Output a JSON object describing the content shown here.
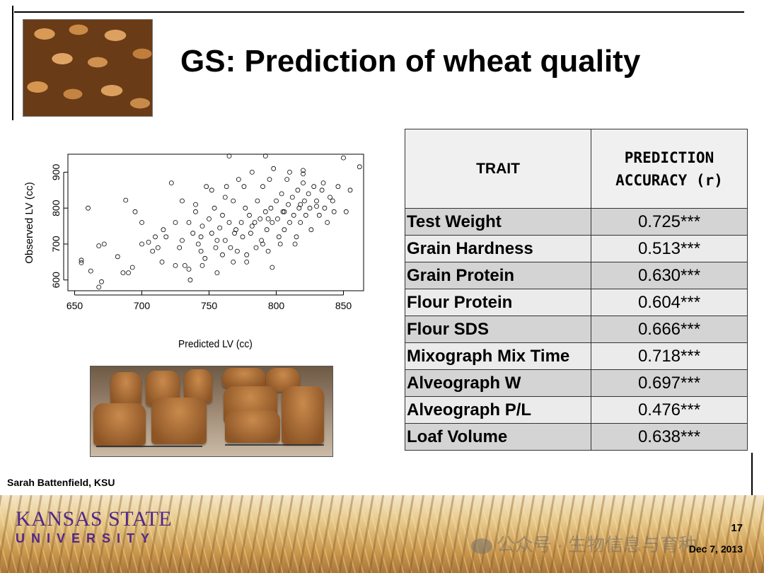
{
  "slide": {
    "title": "GS: Prediction of wheat quality",
    "credit": "Sarah Battenfield, KSU",
    "logo": {
      "line1": "KANSAS STATE",
      "line2": "UNIVERSITY"
    },
    "watermark": "公众号 · 生物信息与育种",
    "page_number": "17",
    "date": "Dec 7, 2013"
  },
  "table": {
    "headers": [
      "TRAIT",
      "PREDICTION ACCURACY (r)"
    ],
    "rows": [
      {
        "trait": "Test Weight",
        "value": "0.725***"
      },
      {
        "trait": "Grain Hardness",
        "value": "0.513***"
      },
      {
        "trait": "Grain Protein",
        "value": "0.630***"
      },
      {
        "trait": "Flour Protein",
        "value": "0.604***"
      },
      {
        "trait": "Flour SDS",
        "value": "0.666***"
      },
      {
        "trait": "Mixograph Mix Time",
        "value": "0.718***"
      },
      {
        "trait": "Alveograph W",
        "value": "0.697***"
      },
      {
        "trait": "Alveograph P/L",
        "value": "0.476***"
      },
      {
        "trait": "Loaf Volume",
        "value": "0.638***"
      }
    ]
  },
  "chart_data": {
    "type": "scatter",
    "xlabel": "Predicted LV (cc)",
    "ylabel": "Observed LV (cc)",
    "xlim": [
      645,
      865
    ],
    "ylim": [
      570,
      950
    ],
    "xticks": [
      650,
      700,
      750,
      800,
      850
    ],
    "yticks": [
      600,
      700,
      800,
      900
    ],
    "points": [
      [
        660,
        800
      ],
      [
        655,
        655
      ],
      [
        655,
        648
      ],
      [
        662,
        625
      ],
      [
        668,
        695
      ],
      [
        672,
        700
      ],
      [
        668,
        580
      ],
      [
        670,
        595
      ],
      [
        682,
        665
      ],
      [
        686,
        620
      ],
      [
        690,
        620
      ],
      [
        693,
        635
      ],
      [
        688,
        822
      ],
      [
        695,
        790
      ],
      [
        700,
        760
      ],
      [
        705,
        705
      ],
      [
        708,
        680
      ],
      [
        712,
        690
      ],
      [
        715,
        650
      ],
      [
        718,
        720
      ],
      [
        722,
        870
      ],
      [
        725,
        760
      ],
      [
        728,
        690
      ],
      [
        730,
        820
      ],
      [
        732,
        640
      ],
      [
        735,
        760
      ],
      [
        736,
        600
      ],
      [
        738,
        730
      ],
      [
        740,
        790
      ],
      [
        742,
        700
      ],
      [
        744,
        680
      ],
      [
        745,
        750
      ],
      [
        747,
        660
      ],
      [
        748,
        860
      ],
      [
        750,
        770
      ],
      [
        752,
        730
      ],
      [
        754,
        800
      ],
      [
        755,
        690
      ],
      [
        756,
        620
      ],
      [
        758,
        745
      ],
      [
        760,
        780
      ],
      [
        762,
        710
      ],
      [
        763,
        860
      ],
      [
        765,
        760
      ],
      [
        766,
        690
      ],
      [
        768,
        820
      ],
      [
        770,
        740
      ],
      [
        771,
        680
      ],
      [
        772,
        880
      ],
      [
        774,
        760
      ],
      [
        775,
        720
      ],
      [
        777,
        800
      ],
      [
        778,
        650
      ],
      [
        780,
        780
      ],
      [
        781,
        730
      ],
      [
        782,
        900
      ],
      [
        784,
        760
      ],
      [
        785,
        690
      ],
      [
        786,
        820
      ],
      [
        788,
        770
      ],
      [
        789,
        710
      ],
      [
        790,
        860
      ],
      [
        792,
        790
      ],
      [
        793,
        740
      ],
      [
        794,
        680
      ],
      [
        796,
        800
      ],
      [
        797,
        760
      ],
      [
        798,
        910
      ],
      [
        800,
        820
      ],
      [
        801,
        770
      ],
      [
        802,
        720
      ],
      [
        804,
        840
      ],
      [
        805,
        790
      ],
      [
        806,
        740
      ],
      [
        808,
        880
      ],
      [
        809,
        810
      ],
      [
        810,
        760
      ],
      [
        812,
        830
      ],
      [
        813,
        780
      ],
      [
        814,
        700
      ],
      [
        816,
        850
      ],
      [
        817,
        800
      ],
      [
        818,
        760
      ],
      [
        820,
        870
      ],
      [
        821,
        820
      ],
      [
        822,
        780
      ],
      [
        824,
        840
      ],
      [
        825,
        800
      ],
      [
        826,
        740
      ],
      [
        828,
        860
      ],
      [
        830,
        820
      ],
      [
        832,
        780
      ],
      [
        834,
        850
      ],
      [
        836,
        800
      ],
      [
        838,
        760
      ],
      [
        840,
        830
      ],
      [
        843,
        790
      ],
      [
        846,
        860
      ],
      [
        850,
        940
      ],
      [
        852,
        790
      ],
      [
        855,
        850
      ],
      [
        862,
        915
      ],
      [
        725,
        640
      ],
      [
        735,
        630
      ],
      [
        745,
        640
      ],
      [
        760,
        670
      ],
      [
        768,
        650
      ],
      [
        778,
        670
      ],
      [
        790,
        700
      ],
      [
        803,
        700
      ],
      [
        815,
        720
      ],
      [
        740,
        810
      ],
      [
        752,
        850
      ],
      [
        762,
        830
      ],
      [
        776,
        860
      ],
      [
        795,
        880
      ],
      [
        810,
        900
      ],
      [
        820,
        895
      ],
      [
        700,
        700
      ],
      [
        710,
        720
      ],
      [
        716,
        740
      ],
      [
        730,
        710
      ],
      [
        744,
        720
      ],
      [
        756,
        710
      ],
      [
        769,
        730
      ],
      [
        782,
        750
      ],
      [
        794,
        770
      ],
      [
        806,
        790
      ],
      [
        818,
        810
      ],
      [
        830,
        805
      ],
      [
        842,
        820
      ],
      [
        797,
        635
      ],
      [
        792,
        945
      ],
      [
        765,
        945
      ],
      [
        820,
        905
      ],
      [
        835,
        870
      ]
    ]
  }
}
